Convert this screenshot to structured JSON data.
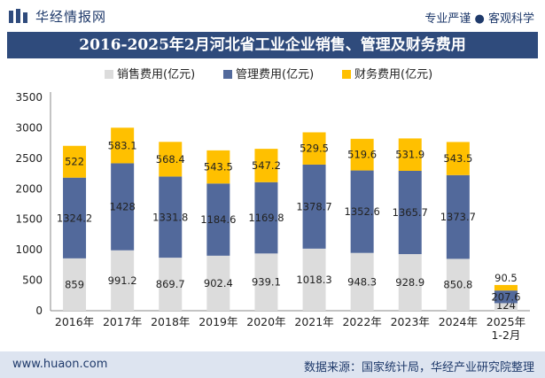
{
  "header": {
    "brand": "华经情报网",
    "slogan": "专业严谨 ● 客观科学"
  },
  "footer": {
    "website": "www.huaon.com",
    "source": "数据来源：国家统计局，华经产业研究院整理"
  },
  "colors": {
    "sales": "#dcdcdc",
    "management": "#52699b",
    "finance": "#ffc000",
    "titlebar": "#2f4b7c"
  },
  "chart_data": {
    "type": "bar",
    "stacked": true,
    "title": "2016-2025年2月河北省工业企业销售、管理及财务费用",
    "categories": [
      "2016年",
      "2017年",
      "2018年",
      "2019年",
      "2020年",
      "2021年",
      "2022年",
      "2023年",
      "2024年",
      "2025年\n1-2月"
    ],
    "series": [
      {
        "name": "销售费用(亿元)",
        "values": [
          859,
          991.2,
          869.7,
          902.4,
          939.1,
          1018.3,
          948.3,
          928.9,
          850.8,
          124
        ]
      },
      {
        "name": "管理费用(亿元)",
        "values": [
          1324.2,
          1428,
          1331.8,
          1184.6,
          1169.8,
          1378.7,
          1352.6,
          1365.7,
          1373.7,
          207.6
        ]
      },
      {
        "name": "财务费用(亿元)",
        "values": [
          522,
          583.1,
          568.4,
          543.5,
          547.2,
          529.5,
          519.6,
          531.9,
          543.5,
          90.5
        ]
      }
    ],
    "ylim": [
      0,
      3500
    ],
    "yticks": [
      0,
      500,
      1000,
      1500,
      2000,
      2500,
      3000,
      3500
    ],
    "xlabel": "",
    "ylabel": "",
    "legend": "top-center",
    "grid": false
  }
}
